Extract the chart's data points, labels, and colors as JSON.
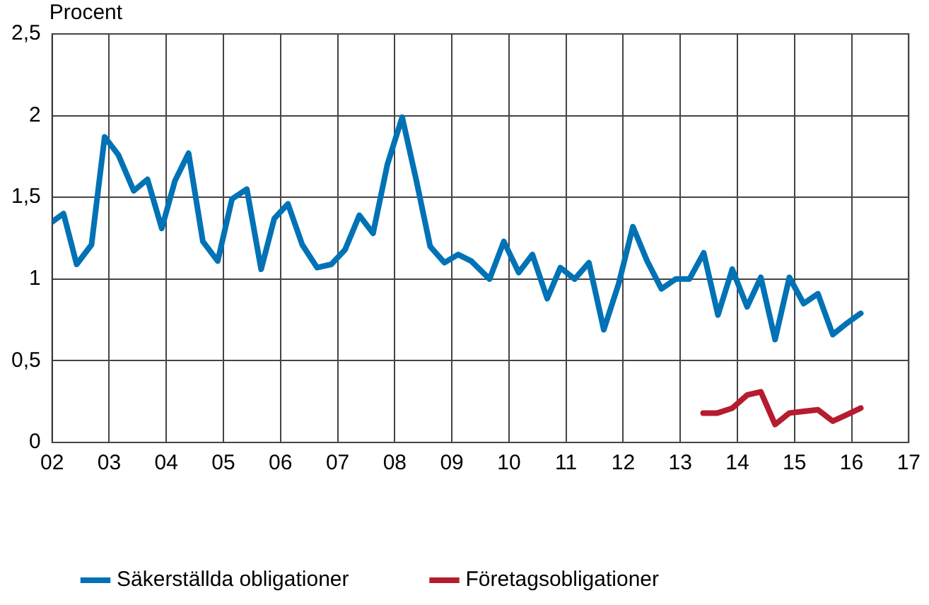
{
  "chart_data": {
    "type": "line",
    "ylabel": "Procent",
    "xlim": [
      2002,
      2017
    ],
    "xticks": [
      {
        "value": 2002,
        "label": "02"
      },
      {
        "value": 2003,
        "label": "03"
      },
      {
        "value": 2004,
        "label": "04"
      },
      {
        "value": 2005,
        "label": "05"
      },
      {
        "value": 2006,
        "label": "06"
      },
      {
        "value": 2007,
        "label": "07"
      },
      {
        "value": 2008,
        "label": "08"
      },
      {
        "value": 2009,
        "label": "09"
      },
      {
        "value": 2010,
        "label": "10"
      },
      {
        "value": 2011,
        "label": "11"
      },
      {
        "value": 2012,
        "label": "12"
      },
      {
        "value": 2013,
        "label": "13"
      },
      {
        "value": 2014,
        "label": "14"
      },
      {
        "value": 2015,
        "label": "15"
      },
      {
        "value": 2016,
        "label": "16"
      },
      {
        "value": 2017,
        "label": "17"
      }
    ],
    "ylim": [
      0,
      2.5
    ],
    "yticks": [
      {
        "value": 0,
        "label": "0"
      },
      {
        "value": 0.5,
        "label": "0,5"
      },
      {
        "value": 1,
        "label": "1"
      },
      {
        "value": 1.5,
        "label": "1,5"
      },
      {
        "value": 2,
        "label": "2"
      },
      {
        "value": 2.5,
        "label": "2,5"
      }
    ],
    "grid": true,
    "legend": "bottom",
    "marker": "none",
    "line_style": "solid",
    "series": [
      {
        "name": "Säkerställda obligationer",
        "color": "#0072b5",
        "x": [
          2002,
          2002.2,
          2002.43,
          2002.69,
          2002.92,
          2003.16,
          2003.43,
          2003.67,
          2003.92,
          2004.15,
          2004.39,
          2004.64,
          2004.9,
          2005.15,
          2005.41,
          2005.66,
          2005.89,
          2006.13,
          2006.38,
          2006.64,
          2006.89,
          2007.13,
          2007.38,
          2007.62,
          2007.87,
          2008.13,
          2008.38,
          2008.62,
          2008.87,
          2009.11,
          2009.34,
          2009.66,
          2009.91,
          2010.17,
          2010.41,
          2010.67,
          2010.9,
          2011.15,
          2011.4,
          2011.66,
          2011.92,
          2012.17,
          2012.42,
          2012.67,
          2012.92,
          2013.16,
          2013.41,
          2013.66,
          2013.91,
          2014.17,
          2014.41,
          2014.66,
          2014.91,
          2015.16,
          2015.41,
          2015.67,
          2015.92,
          2016.16
        ],
        "values": [
          1.35,
          1.4,
          1.09,
          1.21,
          1.87,
          1.76,
          1.54,
          1.61,
          1.31,
          1.6,
          1.77,
          1.23,
          1.11,
          1.49,
          1.55,
          1.06,
          1.37,
          1.46,
          1.21,
          1.07,
          1.09,
          1.18,
          1.39,
          1.28,
          1.7,
          1.99,
          1.6,
          1.2,
          1.1,
          1.15,
          1.11,
          1.0,
          1.23,
          1.04,
          1.15,
          0.88,
          1.07,
          1.0,
          1.1,
          0.69,
          0.97,
          1.32,
          1.11,
          0.94,
          1.0,
          1.0,
          1.16,
          0.78,
          1.06,
          0.83,
          1.01,
          0.63,
          1.01,
          0.85,
          0.91,
          0.66,
          0.73,
          0.79
        ]
      },
      {
        "name": "Företagsobligationer",
        "color": "#b51c2e",
        "x": [
          2013.4,
          2013.65,
          2013.91,
          2014.17,
          2014.41,
          2014.66,
          2014.91,
          2015.16,
          2015.41,
          2015.67,
          2015.92,
          2016.16
        ],
        "values": [
          0.18,
          0.18,
          0.21,
          0.29,
          0.31,
          0.11,
          0.18,
          0.19,
          0.2,
          0.13,
          0.17,
          0.21
        ]
      }
    ]
  }
}
